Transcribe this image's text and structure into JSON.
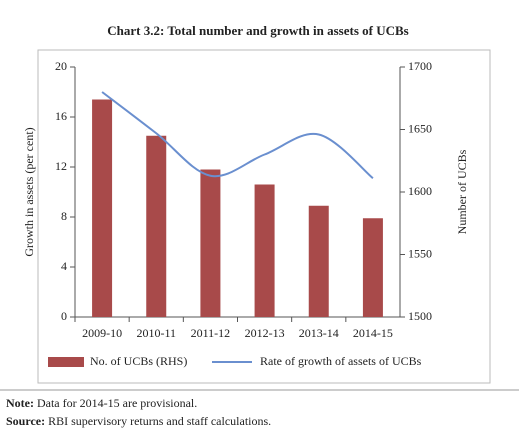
{
  "chart_data": {
    "type": "bar",
    "title": "Chart 3.2: Total number and growth in assets of UCBs",
    "categories": [
      "2009-10",
      "2010-11",
      "2011-12",
      "2012-13",
      "2013-14",
      "2014-15"
    ],
    "series": [
      {
        "name": "No. of UCBs (RHS)",
        "type": "bar",
        "axis": "y2",
        "color": "#a84a4a",
        "values": [
          1674,
          1645,
          1618,
          1606,
          1589,
          1579
        ]
      },
      {
        "name": "Rate of growth of assets of UCBs",
        "type": "line",
        "color": "#6a8fcf",
        "values": [
          18.0,
          14.7,
          11.3,
          13.0,
          14.6,
          11.1
        ]
      }
    ],
    "ylabel": "Growth in assets (per cent)",
    "y2label": "Number of UCBs",
    "ylim": [
      0,
      20
    ],
    "yticks": [
      0,
      4,
      8,
      12,
      16,
      20
    ],
    "y2lim": [
      1500,
      1700
    ],
    "y2ticks": [
      1500,
      1550,
      1600,
      1650,
      1700
    ],
    "legend": "bottom"
  },
  "notes": [
    {
      "label": "Note:",
      "text": "Data for 2014-15 are provisional."
    },
    {
      "label": "Source:",
      "text": "RBI supervisory returns and staff calculations."
    }
  ]
}
